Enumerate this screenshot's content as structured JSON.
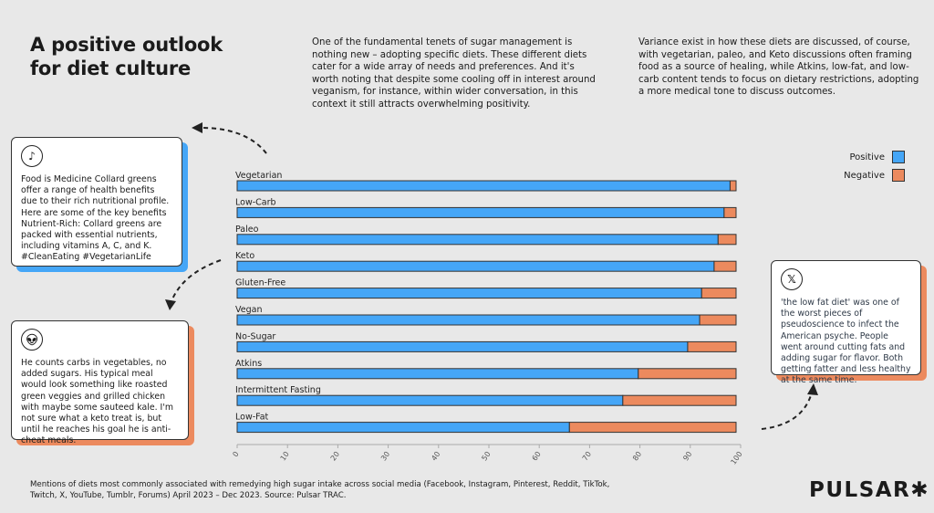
{
  "header": {
    "title": "A positive outlook for diet culture",
    "intro_left": "One of the fundamental tenets of sugar management is nothing new – adopting specific diets. These different diets cater for a wide array of needs and preferences. And it's worth noting that despite some cooling off in interest around veganism, for instance, within wider conversation, in this context it still attracts overwhelming positivity.",
    "intro_right": "Variance exist in how these diets are discussed, of course, with vegetarian, paleo, and Keto discussions often framing food as a source of healing, while Atkins, low-fat, and low-carb content tends to focus on dietary restrictions, adopting a more medical tone to discuss outcomes."
  },
  "cards": {
    "tiktok": {
      "icon": "tiktok-icon",
      "text": "Food is Medicine Collard greens offer a range of health benefits due to their rich nutritional profile. Here are some of the key benefits Nutrient-Rich: Collard greens are packed with essential nutrients, including vitamins A, C, and K. #CleanEating #VegetarianLife"
    },
    "reddit": {
      "icon": "reddit-icon",
      "text": "He counts carbs in vegetables, no added sugars. His typical meal would look something like roasted green veggies and grilled chicken with maybe some sauteed kale. I'm not sure what a keto treat is, but until he reaches his goal he is anti- cheat meals."
    },
    "x": {
      "icon": "x-icon",
      "text": "'the low fat diet' was one of the worst pieces of pseudoscience to infect the American psyche. People went around cutting fats and adding sugar for flavor. Both getting fatter and less healthy at the same time."
    }
  },
  "chart_data": {
    "type": "bar",
    "orientation": "horizontal",
    "stacked": true,
    "categories": [
      "Vegetarian",
      "Low-Carb",
      "Paleo",
      "Keto",
      "Gluten-Free",
      "Vegan",
      "No-Sugar",
      "Atkins",
      "Intermittent Fasting",
      "Low-Fat"
    ],
    "series": [
      {
        "name": "Positive",
        "color": "#45a6f7",
        "values": [
          98.8,
          97.6,
          96.4,
          95.6,
          93.1,
          92.7,
          90.3,
          80.4,
          77.3,
          66.6
        ]
      },
      {
        "name": "Negative",
        "color": "#ec8a5e",
        "values": [
          1.2,
          2.4,
          3.6,
          4.4,
          6.9,
          7.3,
          9.7,
          19.6,
          22.7,
          33.4
        ]
      }
    ],
    "xlim": [
      0,
      100
    ],
    "xticks": [
      "0",
      "10",
      "20",
      "30",
      "40",
      "50",
      "60",
      "70",
      "80",
      "90",
      "100"
    ],
    "legend": "top-right",
    "grid": false
  },
  "footer": {
    "note": "Mentions of diets most commonly associated with remedying high sugar intake across social media (Facebook, Instagram, Pinterest, Reddit, TikTok, Twitch, X, YouTube, Tumblr, Forums) April 2023 – Dec 2023. Source: Pulsar TRAC.",
    "logo": "PULSAR✱"
  }
}
